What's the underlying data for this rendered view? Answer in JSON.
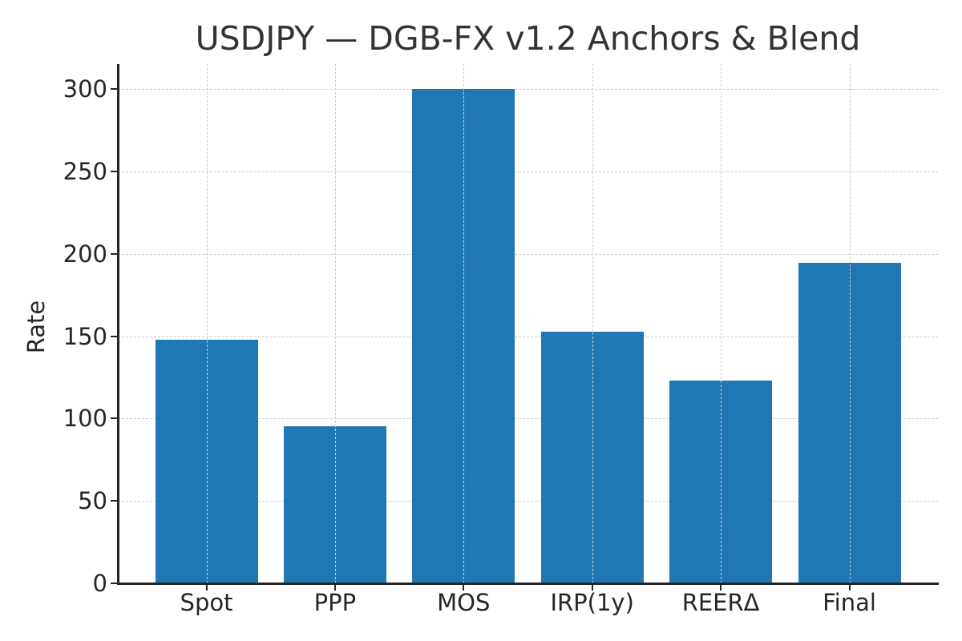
{
  "chart_data": {
    "type": "bar",
    "title": "USDJPY — DGB-FX v1.2 Anchors & Blend",
    "xlabel": "",
    "ylabel": "Rate",
    "categories": [
      "Spot",
      "PPP",
      "MOS",
      "IRP(1y)",
      "REERΔ",
      "Final"
    ],
    "values": [
      148,
      95.3,
      300,
      152.7,
      123,
      194.5
    ],
    "ylim": [
      0,
      315
    ],
    "yticks": [
      0,
      50,
      100,
      150,
      200,
      250,
      300
    ],
    "grid": true,
    "legend": null,
    "bar_color": "#1f77b4"
  },
  "labels": {
    "title": "USDJPY — DGB-FX v1.2 Anchors & Blend",
    "ylabel": "Rate",
    "yticks": [
      "0",
      "50",
      "100",
      "150",
      "200",
      "250",
      "300"
    ],
    "xticks": [
      "Spot",
      "PPP",
      "MOS",
      "IRP(1y)",
      "REERΔ",
      "Final"
    ]
  }
}
